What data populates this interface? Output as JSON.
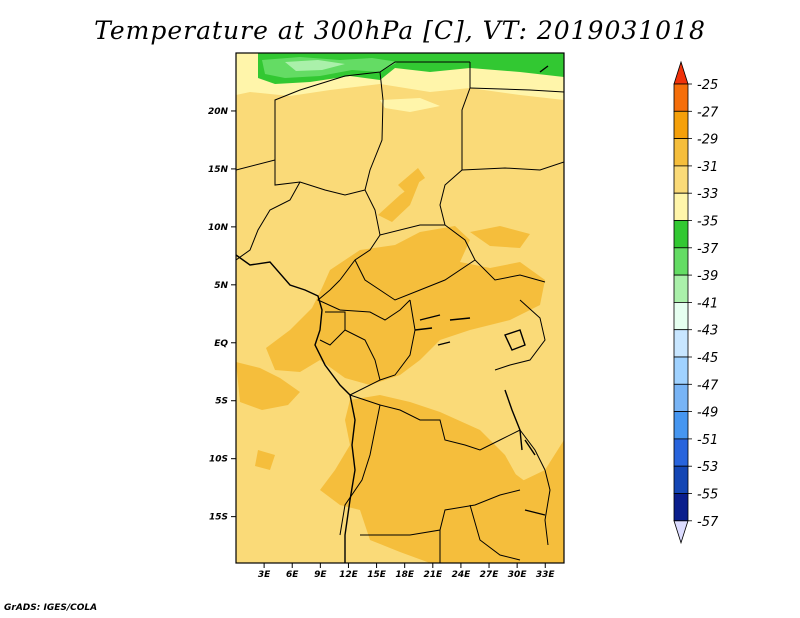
{
  "title": "Temperature at 300hPa [C], VT: 2019031018",
  "credit": "GrADS: IGES/COLA",
  "map": {
    "lon_range": [
      0,
      35
    ],
    "lat_range": [
      -19,
      25
    ],
    "lat_ticks": [
      {
        "value": 20,
        "label": "20N"
      },
      {
        "value": 15,
        "label": "15N"
      },
      {
        "value": 10,
        "label": "10N"
      },
      {
        "value": 5,
        "label": "5N"
      },
      {
        "value": 0,
        "label": "EQ"
      },
      {
        "value": -5,
        "label": "5S"
      },
      {
        "value": -10,
        "label": "10S"
      },
      {
        "value": -15,
        "label": "15S"
      }
    ],
    "lon_ticks": [
      {
        "value": 3,
        "label": "3E"
      },
      {
        "value": 6,
        "label": "6E"
      },
      {
        "value": 9,
        "label": "9E"
      },
      {
        "value": 12,
        "label": "12E"
      },
      {
        "value": 15,
        "label": "15E"
      },
      {
        "value": 18,
        "label": "18E"
      },
      {
        "value": 21,
        "label": "21E"
      },
      {
        "value": 24,
        "label": "24E"
      },
      {
        "value": 27,
        "label": "27E"
      },
      {
        "value": 30,
        "label": "30E"
      },
      {
        "value": 33,
        "label": "33E"
      }
    ]
  },
  "colorbar": {
    "labels": [
      "-25",
      "-27",
      "-29",
      "-31",
      "-33",
      "-35",
      "-37",
      "-39",
      "-41",
      "-43",
      "-45",
      "-47",
      "-49",
      "-51",
      "-53",
      "-55",
      "-57"
    ],
    "colors": [
      "#f0320a",
      "#f56e0a",
      "#f5a00a",
      "#f5be3c",
      "#fada78",
      "#fff5aa",
      "#32c832",
      "#64dc64",
      "#aaf0aa",
      "#e6fff0",
      "#c8e6ff",
      "#a0d2ff",
      "#78b4f5",
      "#4696f0",
      "#2864dc",
      "#1446b4",
      "#0a1e8c",
      "#dcdcff"
    ],
    "top_arrow_color": "#f0320a",
    "bottom_arrow_color": "#dcdcff"
  },
  "field_colors": {
    "base": "#fada78",
    "warm": "#f5be3c",
    "cool": "#fff5aa",
    "green_light": "#aaf0aa",
    "green_mid": "#64dc64",
    "green_dark": "#32c832"
  }
}
